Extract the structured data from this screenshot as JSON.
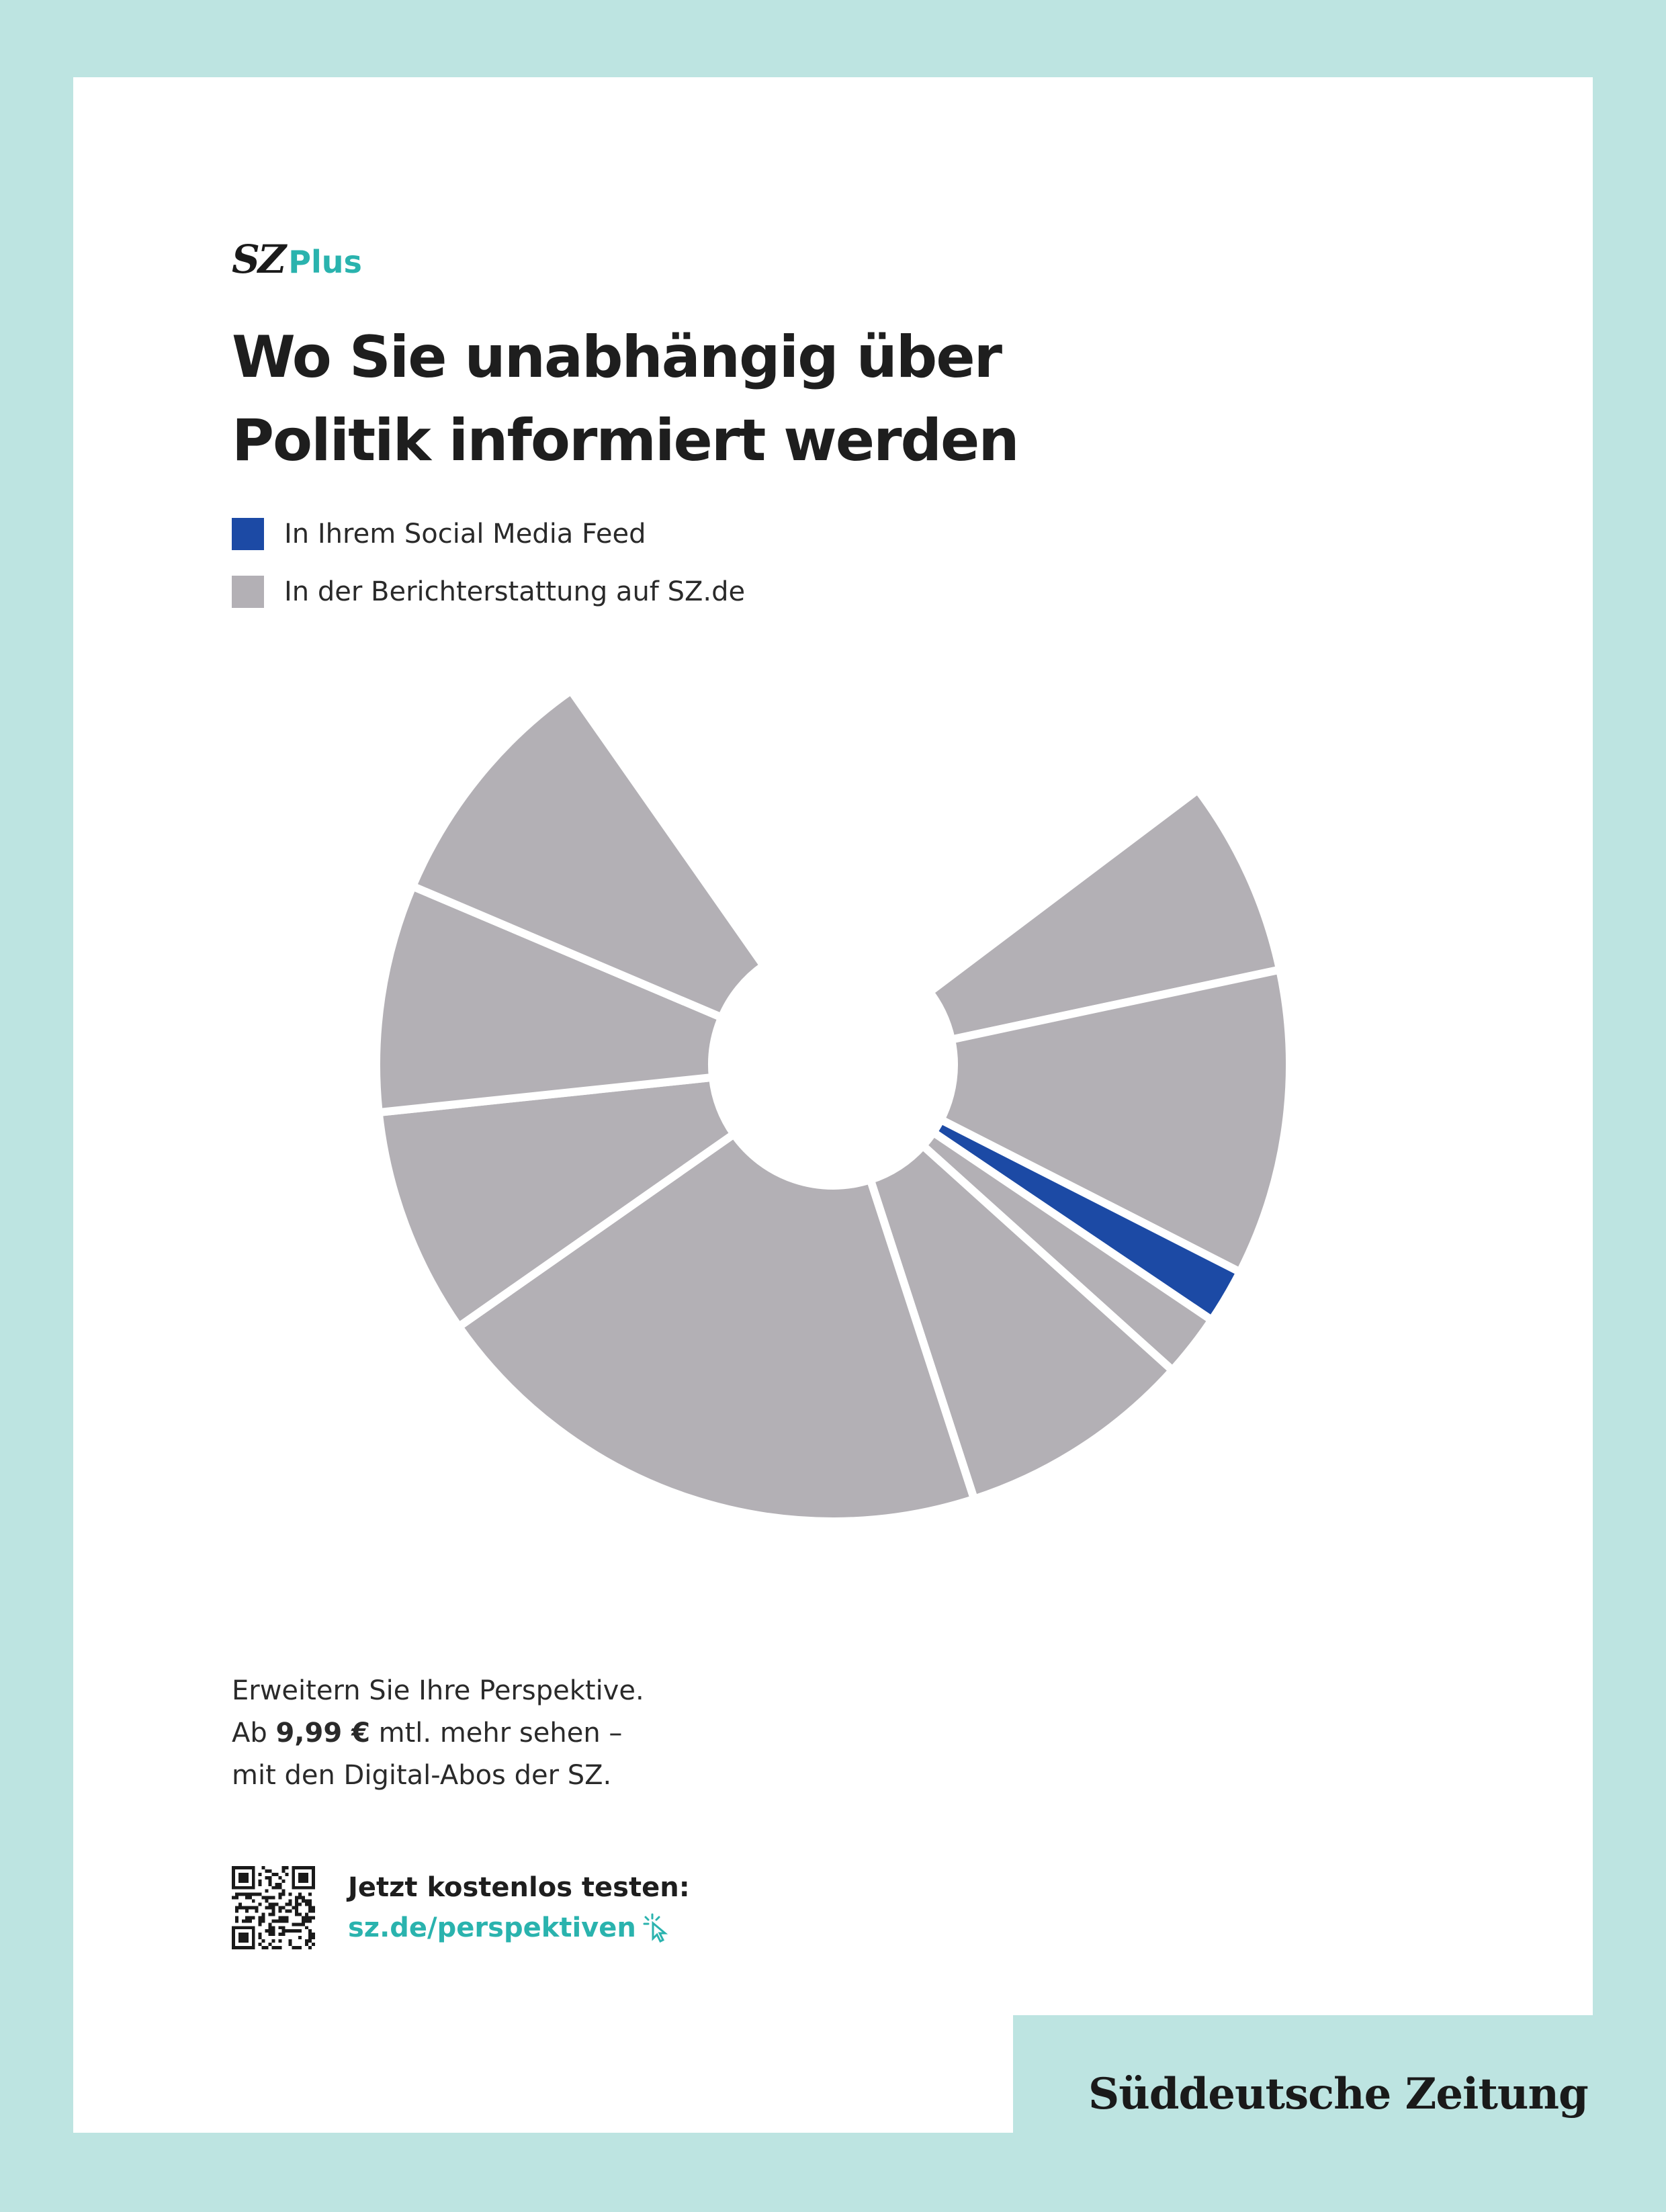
{
  "brand": {
    "logo_mark": "SZ",
    "logo_plus": "Plus",
    "masthead": "Süddeutsche Zeitung"
  },
  "headline": {
    "line1": "Wo Sie unabhängig über",
    "line2": "Politik informiert werden"
  },
  "legend": {
    "items": [
      {
        "label": "In Ihrem Social Media Feed",
        "color": "#1c4aa5"
      },
      {
        "label": "In der Berichterstattung auf SZ.de",
        "color": "#b3b0b5"
      }
    ]
  },
  "copy": {
    "line1": "Erweitern Sie Ihre Perspektive.",
    "line2_prefix": "Ab ",
    "line2_price": "9,99 €",
    "line2_suffix": " mtl. mehr sehen –",
    "line3": "mit den Digital-Abos der SZ."
  },
  "cta": {
    "title": "Jetzt kostenlos testen:",
    "link": "sz.de/perspektiven",
    "icon": "cursor-click-icon"
  },
  "colors": {
    "background": "#bde4e1",
    "page": "#ffffff",
    "accent": "#2ab3ae",
    "social": "#1c4aa5",
    "sz": "#b3b0b5"
  },
  "chart_data": {
    "type": "pie",
    "title": "Wo Sie unabhängig über Politik informiert werden",
    "legend_position": "top-left",
    "start_angle_deg": 53,
    "open_gap_deg": 74,
    "slices": [
      {
        "series": "In der Berichterstattung auf SZ.de",
        "value": 25
      },
      {
        "series": "In der Berichterstattung auf SZ.de",
        "value": 39
      },
      {
        "series": "In Ihrem Social Media Feed",
        "value": 7
      },
      {
        "series": "In der Berichterstattung auf SZ.de",
        "value": 8
      },
      {
        "series": "In der Berichterstattung auf SZ.de",
        "value": 30
      },
      {
        "series": "In der Berichterstattung auf SZ.de",
        "value": 73
      },
      {
        "series": "In der Berichterstattung auf SZ.de",
        "value": 29
      },
      {
        "series": "In der Berichterstattung auf SZ.de",
        "value": 29
      },
      {
        "series": "In der Berichterstattung auf SZ.de",
        "value": 32
      }
    ]
  }
}
